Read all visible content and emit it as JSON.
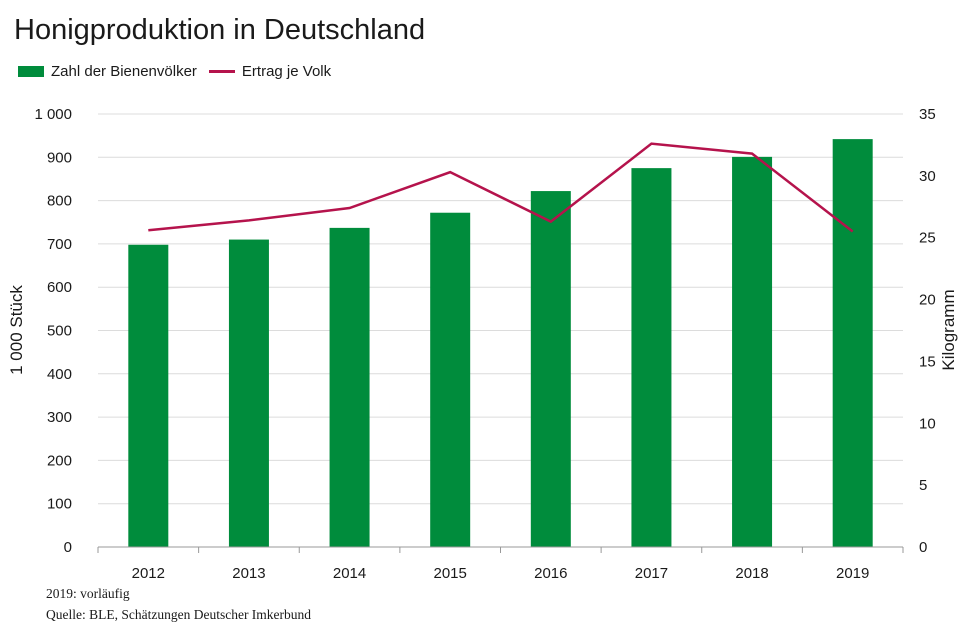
{
  "title": "Honigproduktion in Deutschland",
  "legend": {
    "bars_label": "Zahl der Bienenvölker",
    "line_label": "Ertrag je Volk"
  },
  "colors": {
    "bar": "#008c3c",
    "line": "#b5134c",
    "grid": "#dcdcdc",
    "axis": "#999999"
  },
  "footnotes": {
    "note": "2019: vorläufig",
    "source": "Quelle: BLE, Schätzungen Deutscher Imkerbund"
  },
  "chart_data": {
    "type": "bar",
    "categories": [
      "2012",
      "2013",
      "2014",
      "2015",
      "2016",
      "2017",
      "2018",
      "2019"
    ],
    "series": [
      {
        "name": "Zahl der Bienenvölker",
        "type": "bar",
        "axis": "left",
        "values": [
          698,
          710,
          737,
          772,
          822,
          875,
          901,
          942
        ]
      },
      {
        "name": "Ertrag je Volk",
        "type": "line",
        "axis": "right",
        "values": [
          25.6,
          26.4,
          27.4,
          30.3,
          26.3,
          32.6,
          31.8,
          25.5
        ]
      }
    ],
    "ylabel_left": "1 000 Stück",
    "ylabel_right": "Kilogramm",
    "ylim_left": [
      0,
      1000
    ],
    "ylim_right": [
      0,
      35
    ],
    "yticks_left": [
      "0",
      "100",
      "200",
      "300",
      "400",
      "500",
      "600",
      "700",
      "800",
      "900",
      "1 000"
    ],
    "yticks_right": [
      "0",
      "5",
      "10",
      "15",
      "20",
      "25",
      "30",
      "35"
    ],
    "grid": true,
    "legend_position": "top-left"
  }
}
